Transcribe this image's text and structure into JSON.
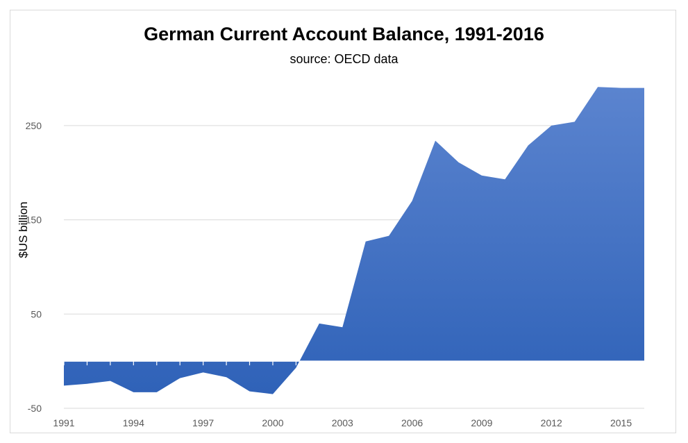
{
  "chart_data": {
    "type": "area",
    "title": "German Current Account Balance, 1991-2016",
    "subtitle": "source: OECD data",
    "xlabel": "",
    "ylabel": "$US billion",
    "x": [
      1991,
      1992,
      1993,
      1994,
      1995,
      1996,
      1997,
      1998,
      1999,
      2000,
      2001,
      2002,
      2003,
      2004,
      2005,
      2006,
      2007,
      2008,
      2009,
      2010,
      2011,
      2012,
      2013,
      2014,
      2015,
      2016
    ],
    "series": [
      {
        "values": [
          -26,
          -24,
          -21,
          -33,
          -33,
          -18,
          -12,
          -17,
          -32,
          -35,
          -7,
          40,
          36,
          127,
          133,
          170,
          234,
          211,
          197,
          193,
          229,
          250,
          254,
          291,
          290,
          290
        ],
        "color": "#4472c4"
      }
    ],
    "xticks": [
      "1991",
      "1994",
      "1997",
      "2000",
      "2003",
      "2006",
      "2009",
      "2012",
      "2015"
    ],
    "yticks": [
      "-50",
      "50",
      "150",
      "250"
    ],
    "ylim": [
      -50,
      300
    ],
    "grid": "horizontal"
  }
}
